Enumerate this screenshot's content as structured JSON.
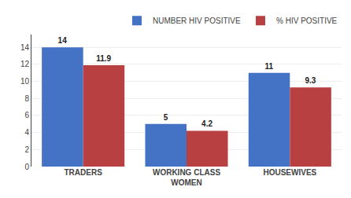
{
  "chart_data": {
    "type": "bar",
    "categories": [
      "TRADERS",
      "WORKING CLASS\nWOMEN",
      "HOUSEWIVES"
    ],
    "series": [
      {
        "name": "NUMBER HIV POSITIVE",
        "color": "#4472C4",
        "values": [
          14,
          5,
          11
        ]
      },
      {
        "name": "% HIV POSITIVE",
        "color": "#B94040",
        "values": [
          11.9,
          4.2,
          9.3
        ]
      }
    ],
    "ylim": [
      0,
      15.5
    ],
    "yticks": [
      0,
      2,
      4,
      6,
      8,
      10,
      12,
      14
    ],
    "grid": true,
    "legend": "upper right",
    "data_labels": true
  }
}
